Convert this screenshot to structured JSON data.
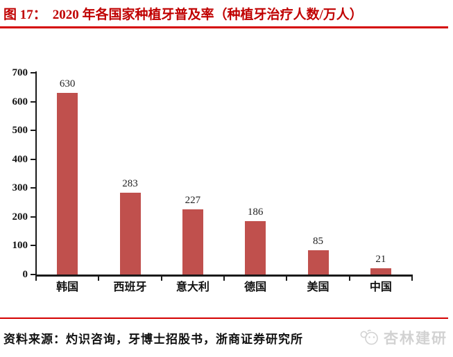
{
  "header": {
    "label": "图 17：",
    "title": "2020 年各国家种植牙普及率（种植牙治疗人数/万人）"
  },
  "chart_data": {
    "type": "bar",
    "title": "2020 年各国家种植牙普及率（种植牙治疗人数/万人）",
    "categories": [
      "韩国",
      "西班牙",
      "意大利",
      "德国",
      "美国",
      "中国"
    ],
    "values": [
      630,
      283,
      227,
      186,
      85,
      21
    ],
    "xlabel": "",
    "ylabel": "",
    "ylim": [
      0,
      700
    ],
    "yticks": [
      0,
      100,
      200,
      300,
      400,
      500,
      600,
      700
    ],
    "grid": false,
    "legend": false,
    "bar_color": "#C0504D"
  },
  "footer": {
    "source": "资料来源：灼识咨询，牙博士招股书，浙商证券研究所",
    "watermark": "杏林建研"
  },
  "colors": {
    "title_red": "#C00000",
    "rule_red": "#D40000",
    "bar": "#C0504D",
    "axis": "#1a1a1a",
    "watermark_gray": "#d2d2d2"
  }
}
